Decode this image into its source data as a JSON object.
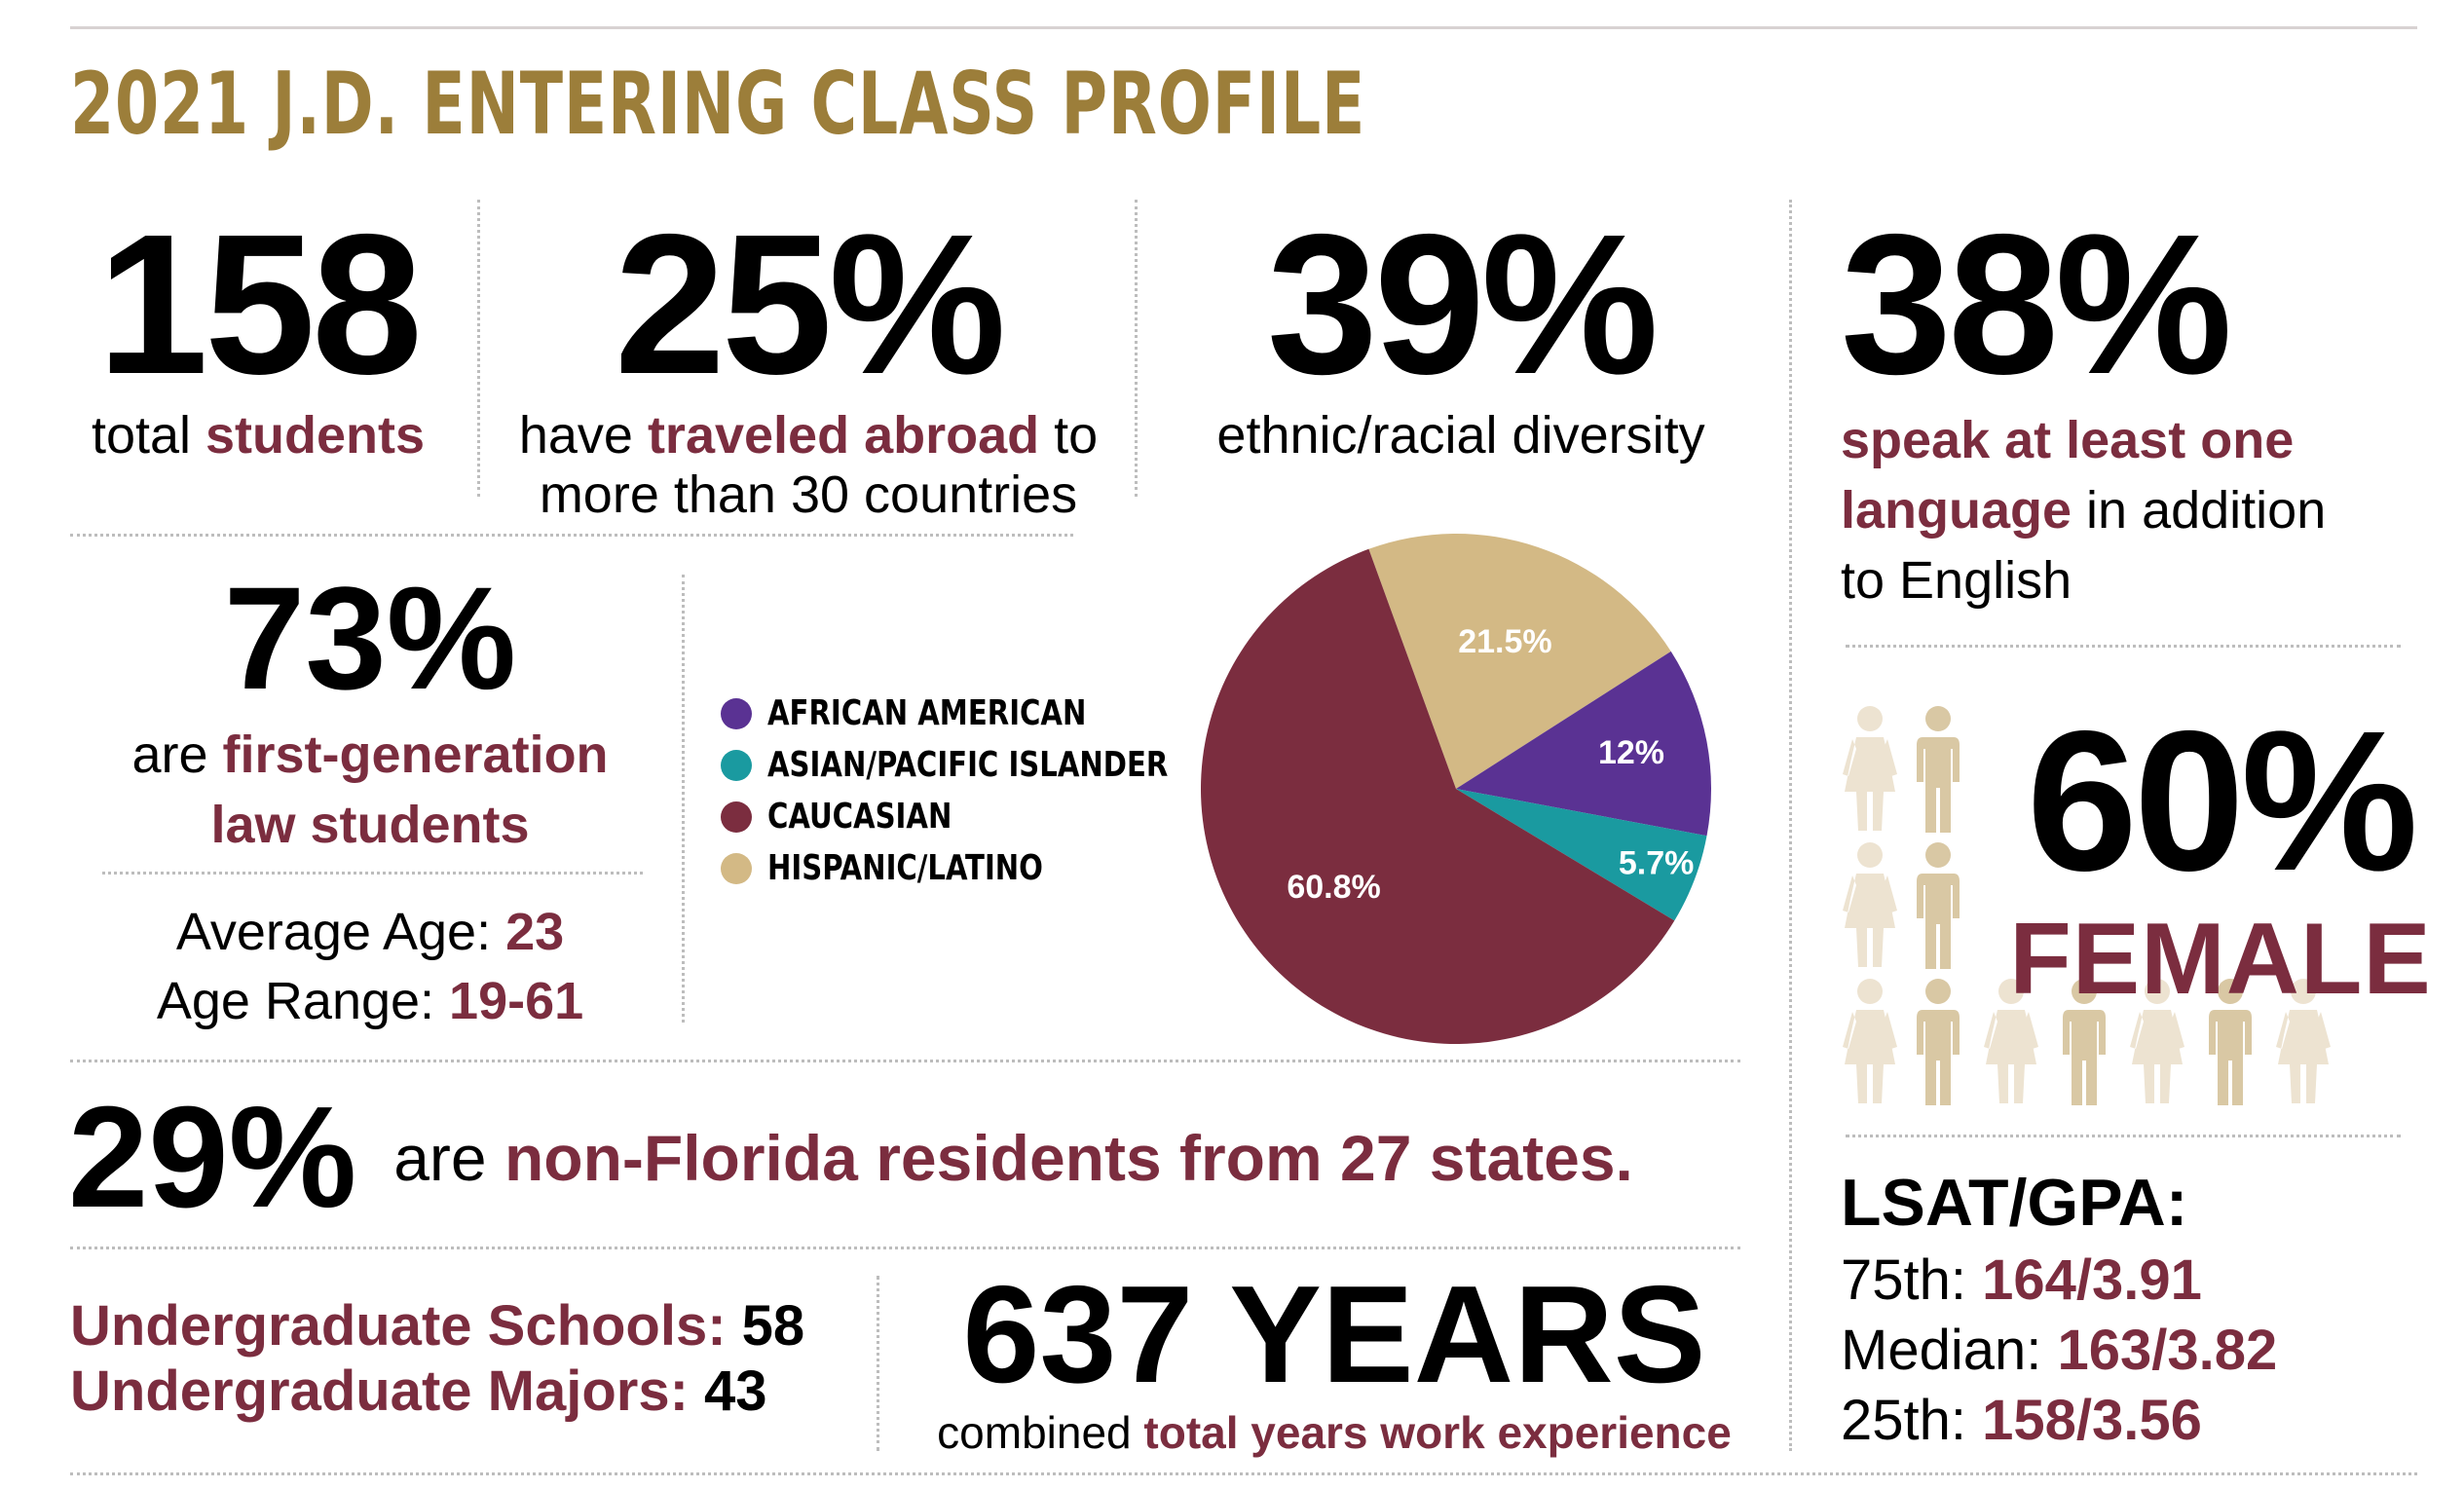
{
  "title": "2021 J.D. ENTERING CLASS PROFILE",
  "stats": {
    "students": {
      "value": "158",
      "pre": "total ",
      "hl": "students"
    },
    "abroad": {
      "value": "25%",
      "pre": "have ",
      "hl": "traveled abroad",
      "post": " to",
      "line2": "more than 30 countries"
    },
    "diversity": {
      "value": "39%",
      "label": "ethnic/racial diversity"
    },
    "language": {
      "value": "38%",
      "hl1": "speak at least one",
      "hl2": "language",
      "post": " in addition",
      "line3": "to English"
    },
    "firstgen": {
      "value": "73%",
      "pre": "are ",
      "hl1": "first-generation",
      "hl2": "law students"
    },
    "age": {
      "avg_label": "Average Age: ",
      "avg_value": "23",
      "range_label": "Age Range: ",
      "range_value": "19-61"
    },
    "female": {
      "value": "60%",
      "label": "FEMALE"
    },
    "nonfl": {
      "value": "29%",
      "pre": "are ",
      "hl": "non-Florida residents from 27 states."
    },
    "undergrad": {
      "schools_label": "Undergraduate Schools: ",
      "schools_value": "58",
      "majors_label": "Undergraduate Majors: ",
      "majors_value": "43"
    },
    "work": {
      "value": "637 YEARS",
      "pre": "combined ",
      "hl": "total years work experience"
    },
    "lsat": {
      "heading": "LSAT/GPA:",
      "rows": [
        {
          "label": "75th: ",
          "value": "164/3.91"
        },
        {
          "label": "Median: ",
          "value": "163/3.82"
        },
        {
          "label": "25th: ",
          "value": "158/3.56"
        }
      ]
    }
  },
  "people_icons": [
    "female",
    "male",
    "female",
    "male",
    "female",
    "male",
    "female",
    "male",
    "female",
    "male",
    "female"
  ],
  "colors": {
    "maroon": "#7b2d3f",
    "gold": "#9c7e3a",
    "purple": "#5a3293",
    "teal": "#1a9aa0",
    "tan": "#d3b985",
    "icon_female": "#ede3d1",
    "icon_male": "#d9c8a4"
  },
  "chart_data": {
    "type": "pie",
    "title": "",
    "legend_position": "left",
    "slices": [
      {
        "name": "AFRICAN AMERICAN",
        "value": 12,
        "label": "12%",
        "color": "#5a3293"
      },
      {
        "name": "ASIAN/PACIFIC ISLANDER",
        "value": 5.7,
        "label": "5.7%",
        "color": "#1a9aa0"
      },
      {
        "name": "CAUCASIAN",
        "value": 60.8,
        "label": "60.8%",
        "color": "#7b2d3f"
      },
      {
        "name": "HISPANIC/LATINO",
        "value": 21.5,
        "label": "21.5%",
        "color": "#d3b985"
      }
    ]
  }
}
